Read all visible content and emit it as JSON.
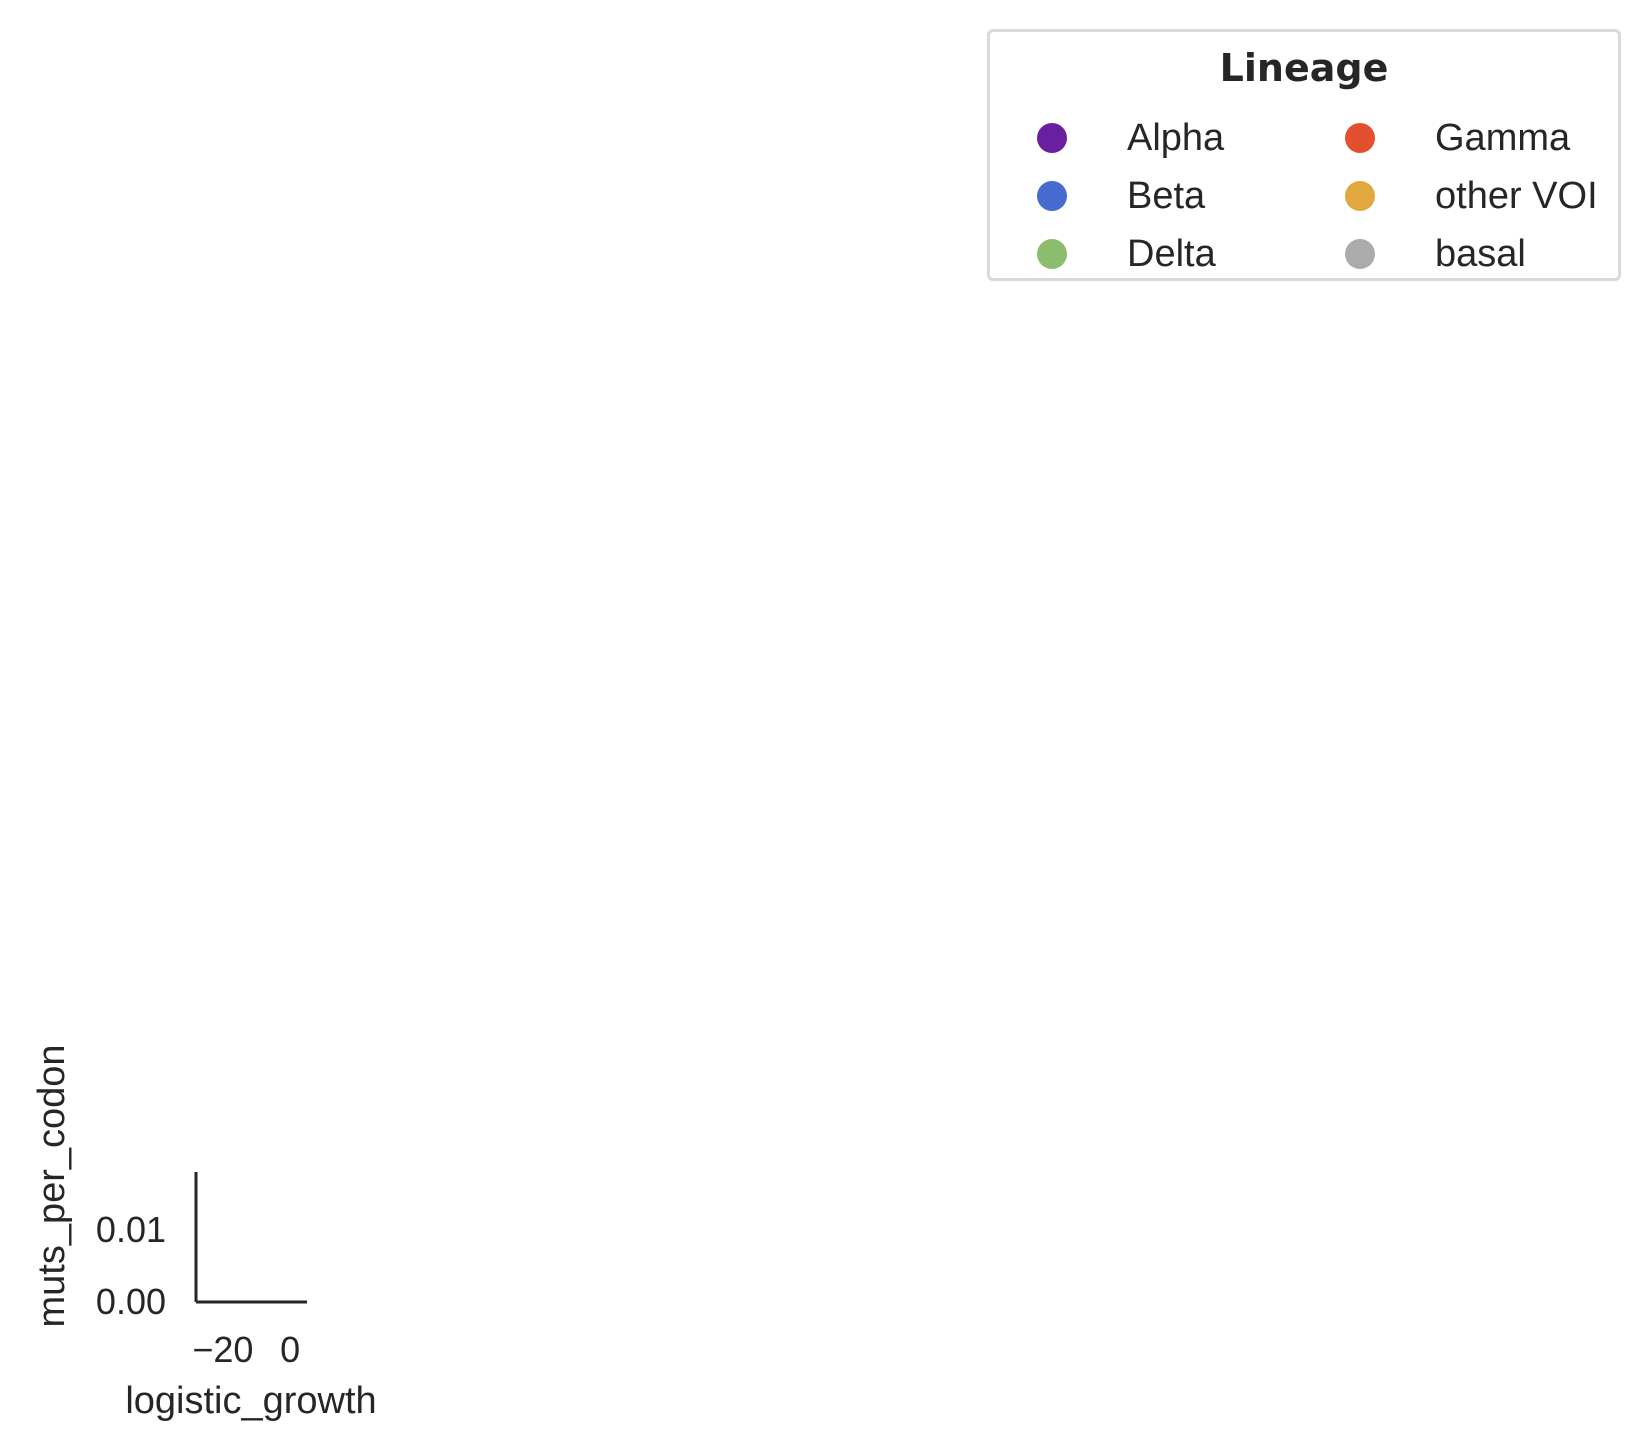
{
  "chart_data": {
    "type": "scatter",
    "title": "",
    "xlabel": "logistic_growth",
    "ylabel": "muts_per_codon",
    "xlim": [
      -28,
      5
    ],
    "ylim": [
      0,
      0.018
    ],
    "x_ticks": [
      {
        "value": -20,
        "label": "−20"
      },
      {
        "value": 0,
        "label": "0"
      }
    ],
    "y_ticks": [
      {
        "value": 0.0,
        "label": "0.00"
      },
      {
        "value": 0.01,
        "label": "0.01"
      }
    ],
    "grid": false,
    "series": [],
    "legend": {
      "title": "Lineage",
      "placement": "top-right",
      "columns": 2,
      "entries": [
        {
          "label": "Alpha",
          "color": "#6a1fa0"
        },
        {
          "label": "Beta",
          "color": "#456bd0"
        },
        {
          "label": "Delta",
          "color": "#8cbc6e"
        },
        {
          "label": "Gamma",
          "color": "#e2502f"
        },
        {
          "label": "other VOI",
          "color": "#e0a83f"
        },
        {
          "label": "basal",
          "color": "#ababab"
        }
      ]
    }
  }
}
